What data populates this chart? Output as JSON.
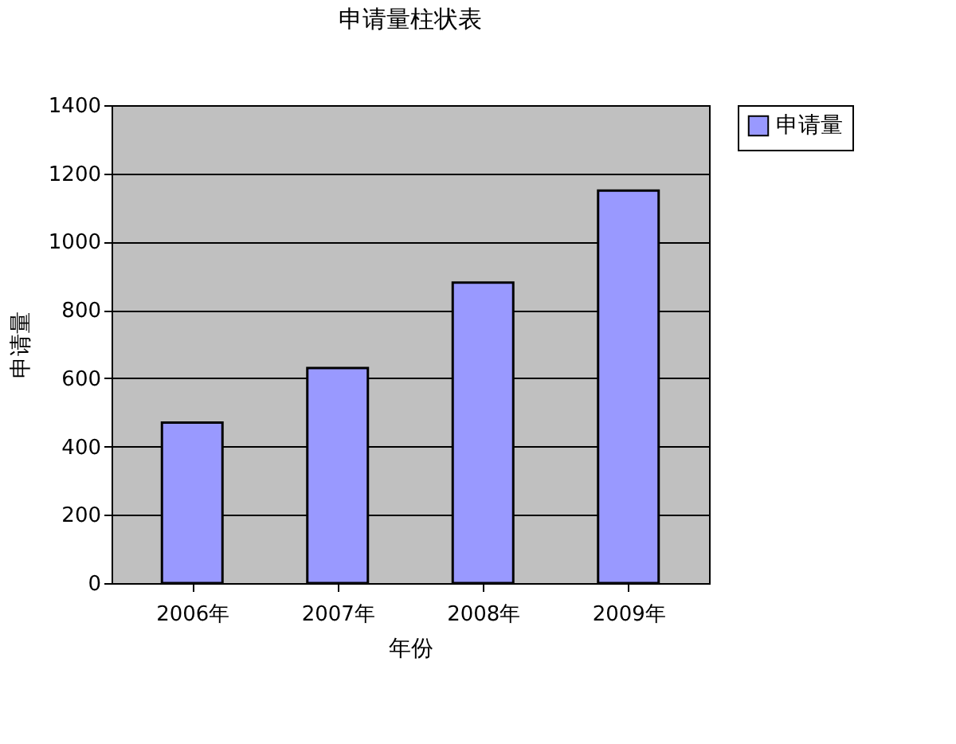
{
  "chart_data": {
    "type": "bar",
    "title": "申请量柱状表",
    "xlabel": "年份",
    "ylabel": "申请量",
    "categories": [
      "2006年",
      "2007年",
      "2008年",
      "2009年"
    ],
    "series": [
      {
        "name": "申请量",
        "color": "#9999ff",
        "values": [
          470,
          630,
          880,
          1150
        ]
      }
    ],
    "ylim": [
      0,
      1400
    ],
    "yticks": [
      0,
      200,
      400,
      600,
      800,
      1000,
      1200,
      1400
    ],
    "grid": "y",
    "legend": "right"
  }
}
